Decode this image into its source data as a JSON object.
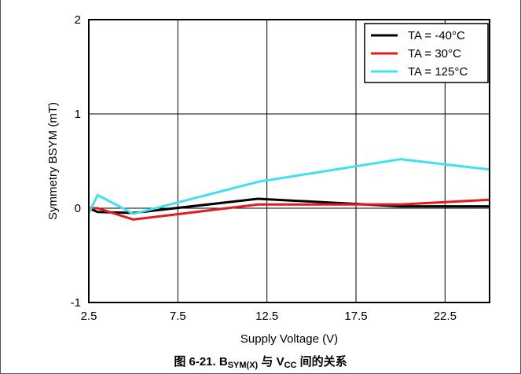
{
  "caption": {
    "figure_no": "图 6-21.",
    "b_main": "B",
    "b_sub": "SYM(X)",
    "joiner": "与",
    "v_main": "V",
    "v_sub": "CC",
    "tail": "间的关系"
  },
  "chart_data": {
    "type": "line",
    "title": "",
    "xlabel": "Supply Voltage (V)",
    "ylabel": "Symmetry BSYM (mT)",
    "xlim": [
      2.5,
      25
    ],
    "ylim": [
      -1,
      2
    ],
    "xticks": [
      2.5,
      7.5,
      12.5,
      17.5,
      22.5
    ],
    "xtick_labels": [
      "2.5",
      "7.5",
      "12.5",
      "17.5",
      "22.5"
    ],
    "yticks": [
      2,
      1,
      0,
      -1
    ],
    "ytick_labels": [
      "2",
      "1",
      "0",
      "-1"
    ],
    "grid": true,
    "legend_position": "top-right",
    "series": [
      {
        "name": "TA = -40°C",
        "color": "#000000",
        "x": [
          2.5,
          3,
          5,
          12,
          20,
          25
        ],
        "y": [
          0.0,
          -0.04,
          -0.05,
          0.1,
          0.02,
          0.02
        ]
      },
      {
        "name": "TA = 30°C",
        "color": "#e41a1c",
        "x": [
          2.5,
          3,
          5,
          12,
          20,
          25
        ],
        "y": [
          0.0,
          0.0,
          -0.12,
          0.04,
          0.04,
          0.09
        ]
      },
      {
        "name": "TA = 125°C",
        "color": "#3fe0f0",
        "x": [
          2.5,
          3,
          5,
          12,
          20,
          25
        ],
        "y": [
          -0.05,
          0.14,
          -0.06,
          0.28,
          0.52,
          0.41
        ]
      }
    ]
  }
}
